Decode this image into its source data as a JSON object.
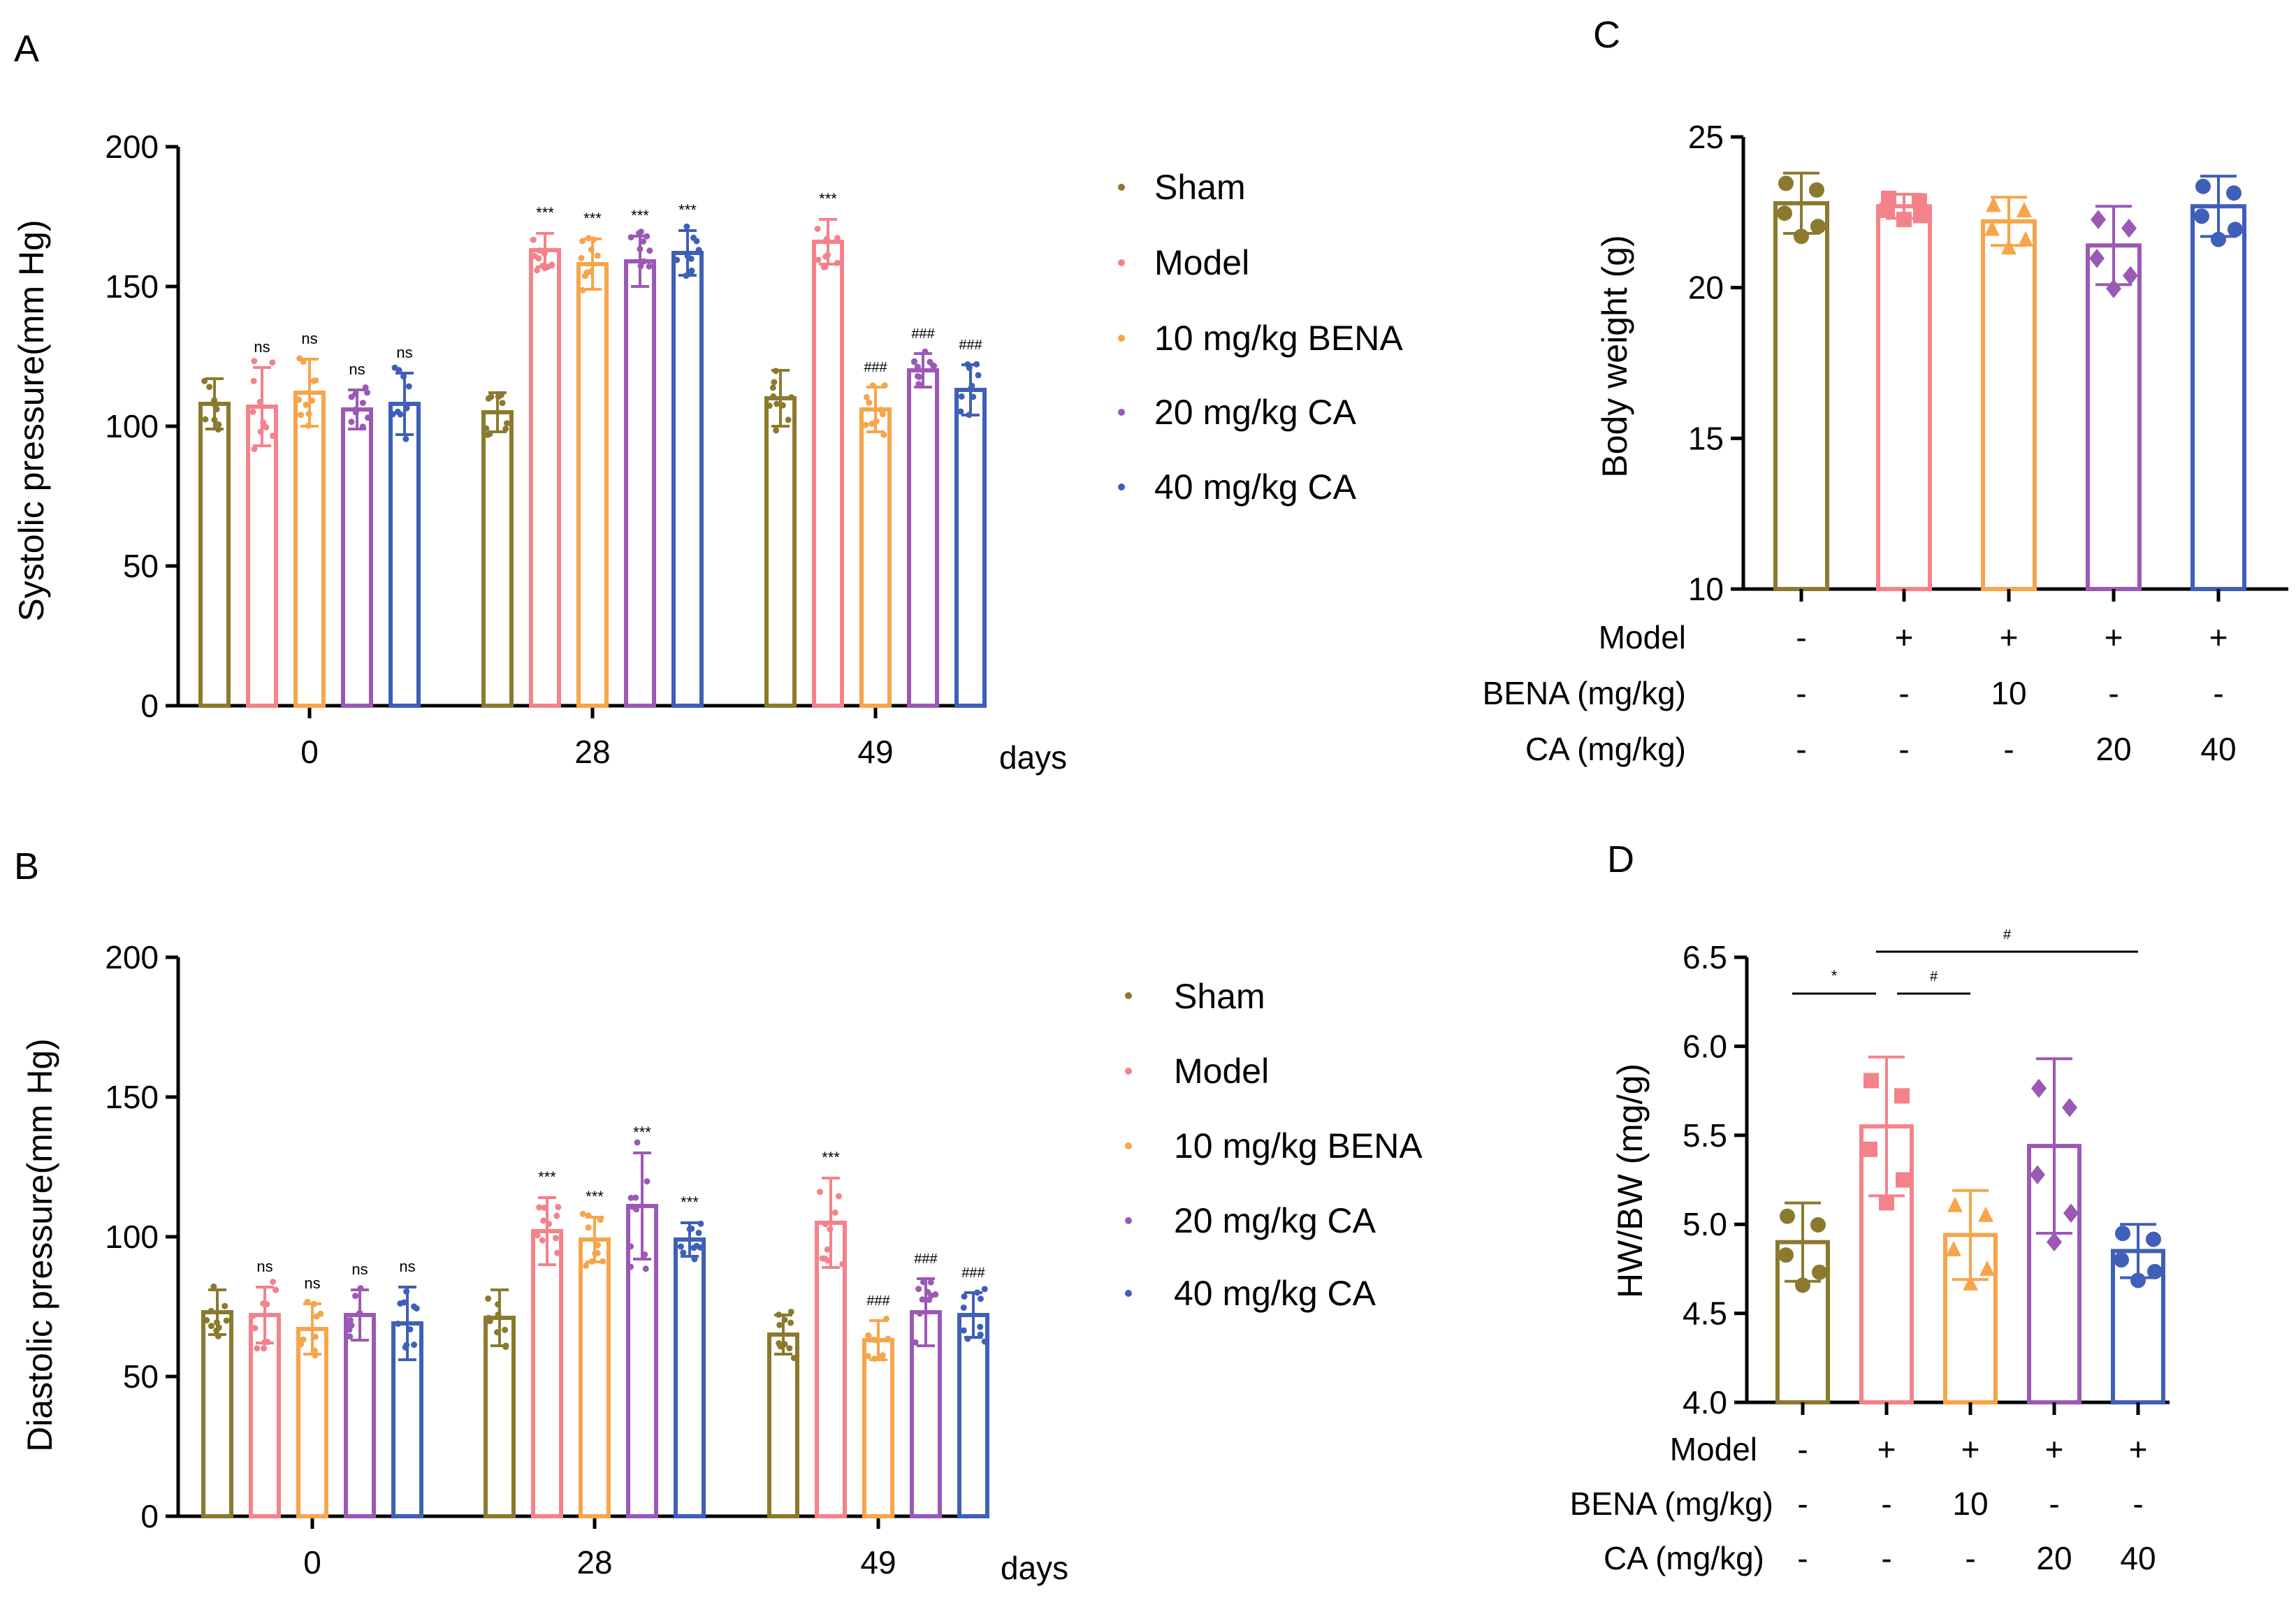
{
  "colors": {
    "sham": "#8B7A2E",
    "model": "#F4828A",
    "bena10": "#F7A54A",
    "ca20": "#9B59B6",
    "ca40": "#3F5FB8",
    "black": "#000000"
  },
  "legend": [
    "Sham",
    "Model",
    "10 mg/kg BENA",
    "20 mg/kg CA",
    "40 mg/kg CA"
  ],
  "panels": {
    "A": {
      "letter": "A",
      "ylabel": "Systolic pressure(mm Hg)",
      "groups": [
        "0",
        "28",
        "49"
      ],
      "days_label": "days",
      "yticks": [
        "0",
        "50",
        "100",
        "150",
        "200"
      ],
      "ylim": [
        0,
        200
      ],
      "values": [
        [
          108,
          107,
          112,
          106,
          108
        ],
        [
          105,
          163,
          158,
          159,
          162
        ],
        [
          110,
          166,
          106,
          120,
          113
        ]
      ],
      "errors": [
        [
          9,
          14,
          12,
          7,
          11
        ],
        [
          7,
          6,
          9,
          9,
          8
        ],
        [
          10,
          8,
          8,
          6,
          9
        ]
      ],
      "sig": [
        [
          "",
          "ns",
          "ns",
          "ns",
          "ns"
        ],
        [
          "",
          "***",
          "***",
          "***",
          "***"
        ],
        [
          "",
          "***",
          "###",
          "###",
          "###"
        ]
      ]
    },
    "B": {
      "letter": "B",
      "ylabel": "Diastolic pressure(mm Hg)",
      "groups": [
        "0",
        "28",
        "49"
      ],
      "days_label": "days",
      "yticks": [
        "0",
        "50",
        "100",
        "150",
        "200"
      ],
      "ylim": [
        0,
        200
      ],
      "values": [
        [
          73,
          72,
          67,
          72,
          69
        ],
        [
          71,
          102,
          99,
          111,
          99
        ],
        [
          65,
          105,
          63,
          73,
          72
        ]
      ],
      "errors": [
        [
          8,
          10,
          9,
          9,
          13
        ],
        [
          10,
          12,
          8,
          19,
          6
        ],
        [
          7,
          16,
          7,
          12,
          8
        ]
      ],
      "sig": [
        [
          "",
          "ns",
          "ns",
          "ns",
          "ns"
        ],
        [
          "",
          "***",
          "***",
          "***",
          "***"
        ],
        [
          "",
          "***",
          "###",
          "###",
          "###"
        ]
      ]
    },
    "C": {
      "letter": "C",
      "ylabel": "Body weight (g)",
      "yticks": [
        "10",
        "15",
        "20",
        "25"
      ],
      "ylim": [
        10,
        25
      ],
      "values": [
        22.8,
        22.7,
        22.2,
        21.4,
        22.7
      ],
      "errors": [
        1.0,
        0.4,
        0.8,
        1.3,
        1.0
      ],
      "cond_labels": [
        "Model",
        "BENA (mg/kg)",
        "CA (mg/kg)"
      ],
      "cond_values": [
        [
          "-",
          "+",
          "+",
          "+",
          "+"
        ],
        [
          "-",
          "-",
          "10",
          "-",
          "-"
        ],
        [
          "-",
          "-",
          "-",
          "20",
          "40"
        ]
      ]
    },
    "D": {
      "letter": "D",
      "ylabel": "HW/BW (mg/g)",
      "yticks": [
        "4.0",
        "4.5",
        "5.0",
        "5.5",
        "6.0",
        "6.5"
      ],
      "ylim": [
        4.0,
        6.5
      ],
      "values": [
        4.9,
        5.55,
        4.94,
        5.44,
        4.85
      ],
      "errors": [
        0.22,
        0.39,
        0.25,
        0.49,
        0.15
      ],
      "brackets": [
        {
          "from": 0,
          "to": 1,
          "label": "*"
        },
        {
          "from": 1,
          "to": 2,
          "label": "#"
        },
        {
          "from": 1,
          "to": 4,
          "label": "#"
        }
      ],
      "cond_labels": [
        "Model",
        "BENA (mg/kg)",
        "CA (mg/kg)"
      ],
      "cond_values": [
        [
          "-",
          "+",
          "+",
          "+",
          "+"
        ],
        [
          "-",
          "-",
          "10",
          "-",
          "-"
        ],
        [
          "-",
          "-",
          "-",
          "20",
          "40"
        ]
      ]
    }
  },
  "chart_data": [
    {
      "type": "bar",
      "title": "A",
      "xlabel": "days",
      "ylabel": "Systolic pressure(mm Hg)",
      "categories": [
        "0",
        "28",
        "49"
      ],
      "ylim": [
        0,
        200
      ],
      "series": [
        {
          "name": "Sham",
          "values": [
            108,
            105,
            110
          ]
        },
        {
          "name": "Model",
          "values": [
            107,
            163,
            166
          ]
        },
        {
          "name": "10 mg/kg BENA",
          "values": [
            112,
            158,
            106
          ]
        },
        {
          "name": "20 mg/kg CA",
          "values": [
            106,
            159,
            120
          ]
        },
        {
          "name": "40 mg/kg CA",
          "values": [
            108,
            162,
            113
          ]
        }
      ]
    },
    {
      "type": "bar",
      "title": "B",
      "xlabel": "days",
      "ylabel": "Diastolic pressure(mm Hg)",
      "categories": [
        "0",
        "28",
        "49"
      ],
      "ylim": [
        0,
        200
      ],
      "series": [
        {
          "name": "Sham",
          "values": [
            73,
            71,
            65
          ]
        },
        {
          "name": "Model",
          "values": [
            72,
            102,
            105
          ]
        },
        {
          "name": "10 mg/kg BENA",
          "values": [
            67,
            99,
            63
          ]
        },
        {
          "name": "20 mg/kg CA",
          "values": [
            72,
            111,
            73
          ]
        },
        {
          "name": "40 mg/kg CA",
          "values": [
            69,
            99,
            72
          ]
        }
      ]
    },
    {
      "type": "bar",
      "title": "C",
      "ylabel": "Body weight (g)",
      "categories": [
        "Sham",
        "Model",
        "Model+BENA 10",
        "Model+CA 20",
        "Model+CA 40"
      ],
      "ylim": [
        10,
        25
      ],
      "values": [
        22.8,
        22.7,
        22.2,
        21.4,
        22.7
      ]
    },
    {
      "type": "bar",
      "title": "D",
      "ylabel": "HW/BW (mg/g)",
      "categories": [
        "Sham",
        "Model",
        "Model+BENA 10",
        "Model+CA 20",
        "Model+CA 40"
      ],
      "ylim": [
        4.0,
        6.5
      ],
      "values": [
        4.9,
        5.55,
        4.94,
        5.44,
        4.85
      ]
    }
  ]
}
